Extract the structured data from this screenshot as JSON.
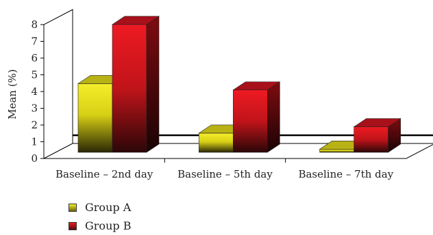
{
  "chart_data": {
    "type": "bar",
    "style": "3d",
    "ylabel": "Mean (%)",
    "ylim": [
      0,
      8
    ],
    "yticks": [
      0,
      1,
      2,
      3,
      4,
      5,
      6,
      7,
      8
    ],
    "categories": [
      "Baseline – 2nd day",
      "Baseline – 5th day",
      "Baseline – 7th day"
    ],
    "series": [
      {
        "name": "Group A",
        "values": [
          4.3,
          1.2,
          0.2
        ],
        "color": "#f2ea1a"
      },
      {
        "name": "Group B",
        "values": [
          8.0,
          3.9,
          1.6
        ],
        "color": "#e8141c"
      }
    ],
    "legend": "bottom-left"
  }
}
